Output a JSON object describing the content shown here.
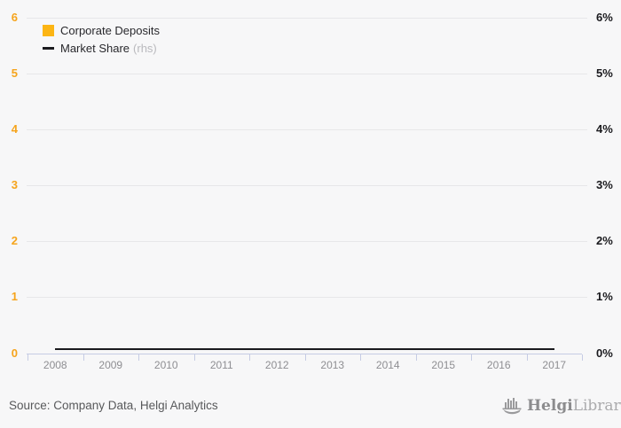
{
  "chart_data": {
    "type": "bar",
    "subtype": "combo-bar-line",
    "title": "",
    "categories": [
      "2008",
      "2009",
      "2010",
      "2011",
      "2012",
      "2013",
      "2014",
      "2015",
      "2016",
      "2017"
    ],
    "series": [
      {
        "name": "Corporate Deposits",
        "type": "bar",
        "axis": "left",
        "color": "#fcb514",
        "values": [
          0,
          0,
          0,
          0,
          0,
          0,
          0,
          0,
          0,
          0
        ]
      },
      {
        "name": "Market Share",
        "type": "line",
        "axis": "right",
        "color": "#1a1a1e",
        "values": [
          0.06,
          0.06,
          0.06,
          0.06,
          0.06,
          0.06,
          0.06,
          0.06,
          0.06,
          0.06
        ]
      }
    ],
    "left_axis": {
      "range": [
        0,
        6
      ],
      "tick_labels_top_to_bottom": [
        "6",
        "5",
        "4",
        "3",
        "2",
        "1",
        "0"
      ],
      "label_color": "#f6a41c"
    },
    "right_axis": {
      "range": [
        0,
        6
      ],
      "unit": "%",
      "tick_labels_top_to_bottom": [
        "6%",
        "5%",
        "4%",
        "3%",
        "2%",
        "1%",
        "0%"
      ],
      "label_color": "#1a1a1e"
    },
    "grid": "horizontal-on",
    "legend_position": "top-left"
  },
  "legend": {
    "items": [
      {
        "label": "Corporate Deposits",
        "swatch": "square",
        "color": "#fcb514"
      },
      {
        "label": "Market Share",
        "suffix": "(rhs)",
        "swatch": "line",
        "color": "#1a1a1e"
      }
    ]
  },
  "footer": {
    "source": "Source: Company Data, Helgi Analytics",
    "logo": {
      "brand_bold": "Helgi",
      "brand_light": "Library."
    }
  },
  "colors": {
    "background": "#f7f7f8",
    "gridline": "#e7e7e9",
    "axis": "#c6cce4",
    "left_labels": "#f6a41c",
    "right_labels": "#1a1a1e",
    "year_labels": "#8e8e92",
    "bar_series": "#fcb514",
    "line_series": "#1a1a1e",
    "source_text": "#58595b",
    "logo_gray": "#8c8c8e"
  }
}
